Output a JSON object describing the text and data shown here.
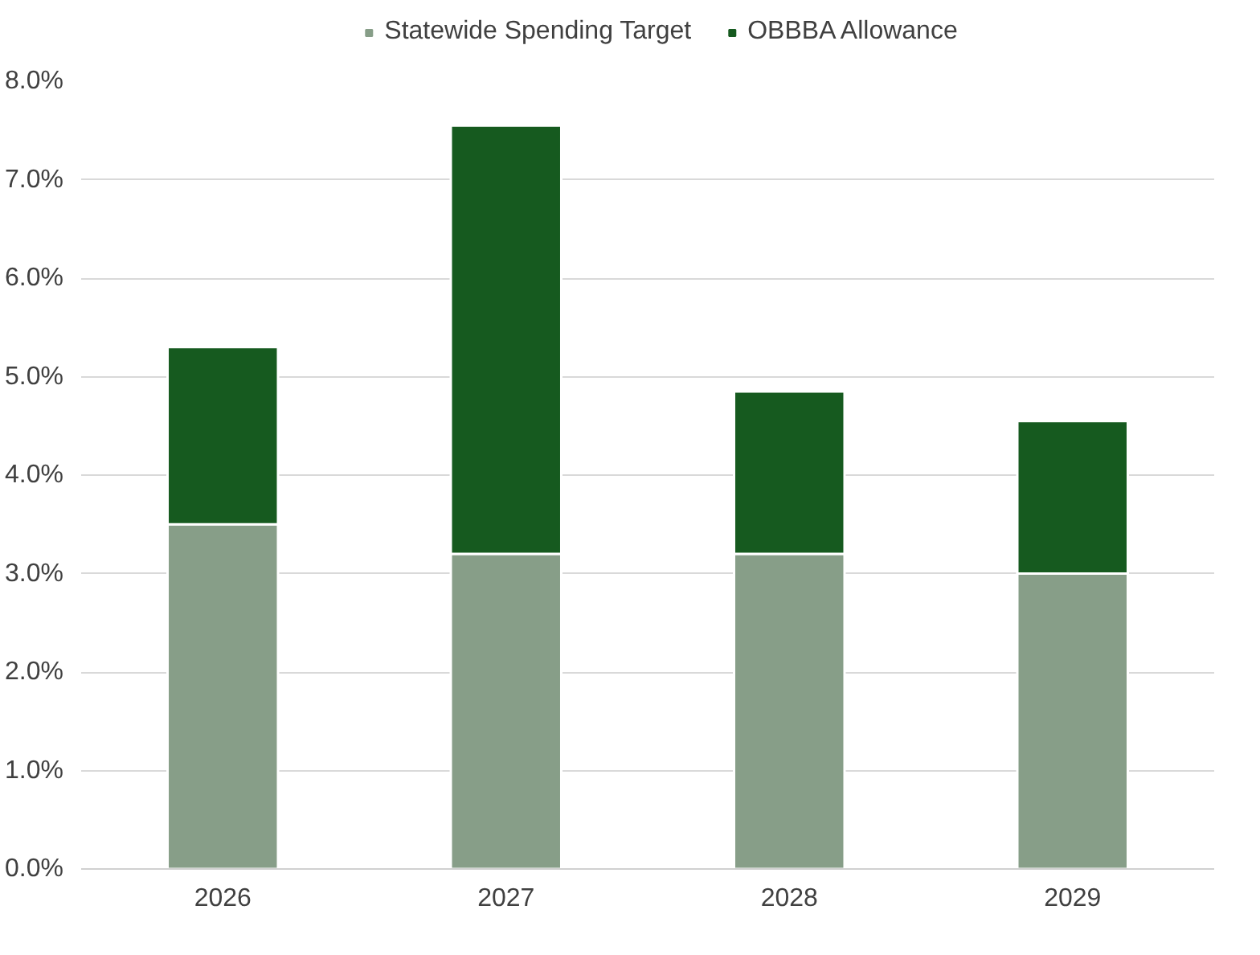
{
  "chart_data": {
    "type": "bar",
    "stacked": true,
    "categories": [
      "2026",
      "2027",
      "2028",
      "2029"
    ],
    "series": [
      {
        "name": "Statewide Spending Target",
        "color": "#879e88",
        "values": [
          3.5,
          3.2,
          3.2,
          3.0
        ]
      },
      {
        "name": "OBBBA Allowance",
        "color": "#165a1f",
        "values": [
          1.8,
          4.35,
          1.65,
          1.55
        ]
      }
    ],
    "ylim": [
      0,
      8
    ],
    "yticks": [
      {
        "value": 0,
        "label": "0.0%"
      },
      {
        "value": 1,
        "label": "1.0%"
      },
      {
        "value": 2,
        "label": "2.0%"
      },
      {
        "value": 3,
        "label": "3.0%"
      },
      {
        "value": 4,
        "label": "4.0%"
      },
      {
        "value": 5,
        "label": "5.0%"
      },
      {
        "value": 6,
        "label": "6.0%"
      },
      {
        "value": 7,
        "label": "7.0%"
      },
      {
        "value": 8,
        "label": "8.0%"
      }
    ],
    "grid": "y",
    "legend": "top"
  }
}
